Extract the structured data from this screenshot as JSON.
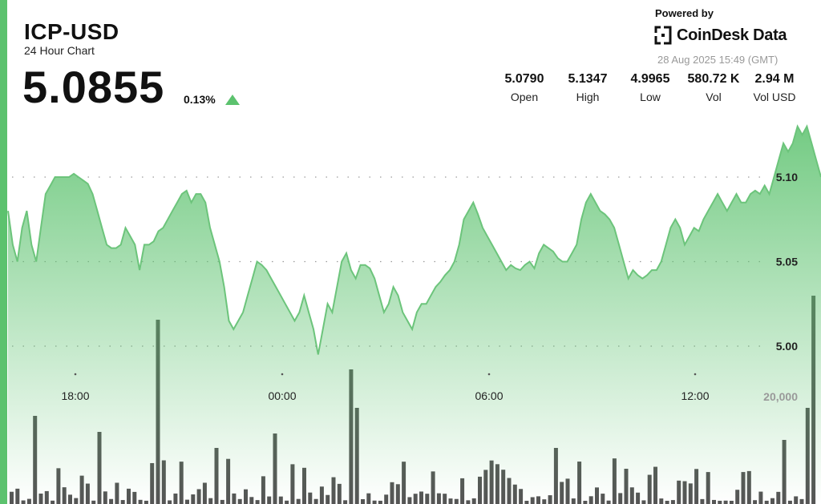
{
  "header": {
    "title": "ICP-USD",
    "subtitle": "24 Hour Chart",
    "price": "5.0855",
    "change": "0.13%",
    "powered_by": "Powered by",
    "brand": "CoinDesk Data",
    "timestamp": "28 Aug 2025 15:49 (GMT)"
  },
  "stats": [
    {
      "value": "5.0790",
      "label": "Open"
    },
    {
      "value": "5.1347",
      "label": "High"
    },
    {
      "value": "4.9965",
      "label": "Low"
    },
    {
      "value": "580.72 K",
      "label": "Vol"
    },
    {
      "value": "2.94 M",
      "label": "Vol USD"
    }
  ],
  "colors": {
    "accent": "#5cc26e",
    "line": "#6cc47b",
    "bar": "#555555"
  },
  "chart_data": {
    "type": "area",
    "x_ticks": [
      "18:00",
      "00:00",
      "06:00",
      "12:00"
    ],
    "y_ticks": [
      5.1,
      5.05,
      5.0
    ],
    "ylim": [
      4.97,
      5.14
    ],
    "volume_tick": "20,000",
    "volume_max": 30000,
    "grid": "dotted-horizontal",
    "price_series": [
      5.08,
      5.06,
      5.05,
      5.07,
      5.08,
      5.06,
      5.05,
      5.07,
      5.09,
      5.095,
      5.1,
      5.1,
      5.1,
      5.1,
      5.102,
      5.1,
      5.098,
      5.096,
      5.09,
      5.08,
      5.07,
      5.06,
      5.058,
      5.058,
      5.06,
      5.07,
      5.065,
      5.06,
      5.045,
      5.06,
      5.06,
      5.062,
      5.068,
      5.07,
      5.075,
      5.08,
      5.085,
      5.09,
      5.092,
      5.085,
      5.09,
      5.09,
      5.085,
      5.07,
      5.06,
      5.05,
      5.035,
      5.015,
      5.01,
      5.015,
      5.02,
      5.03,
      5.04,
      5.05,
      5.048,
      5.045,
      5.04,
      5.035,
      5.03,
      5.025,
      5.02,
      5.015,
      5.02,
      5.03,
      5.02,
      5.01,
      4.995,
      5.01,
      5.025,
      5.02,
      5.035,
      5.05,
      5.055,
      5.045,
      5.04,
      5.048,
      5.048,
      5.046,
      5.04,
      5.03,
      5.02,
      5.025,
      5.035,
      5.03,
      5.02,
      5.015,
      5.01,
      5.02,
      5.025,
      5.025,
      5.03,
      5.035,
      5.038,
      5.042,
      5.045,
      5.05,
      5.06,
      5.075,
      5.08,
      5.085,
      5.078,
      5.07,
      5.065,
      5.06,
      5.055,
      5.05,
      5.045,
      5.048,
      5.046,
      5.045,
      5.048,
      5.05,
      5.046,
      5.055,
      5.06,
      5.058,
      5.056,
      5.052,
      5.05,
      5.05,
      5.055,
      5.06,
      5.075,
      5.085,
      5.09,
      5.085,
      5.08,
      5.078,
      5.075,
      5.07,
      5.06,
      5.05,
      5.04,
      5.045,
      5.042,
      5.04,
      5.042,
      5.045,
      5.045,
      5.05,
      5.06,
      5.07,
      5.075,
      5.07,
      5.06,
      5.065,
      5.07,
      5.068,
      5.075,
      5.08,
      5.085,
      5.09,
      5.085,
      5.08,
      5.085,
      5.09,
      5.085,
      5.085,
      5.09,
      5.092,
      5.09,
      5.095,
      5.09,
      5.1,
      5.11,
      5.12,
      5.115,
      5.12,
      5.13,
      5.125,
      5.13,
      5.12,
      5.11,
      5.1
    ]
  }
}
